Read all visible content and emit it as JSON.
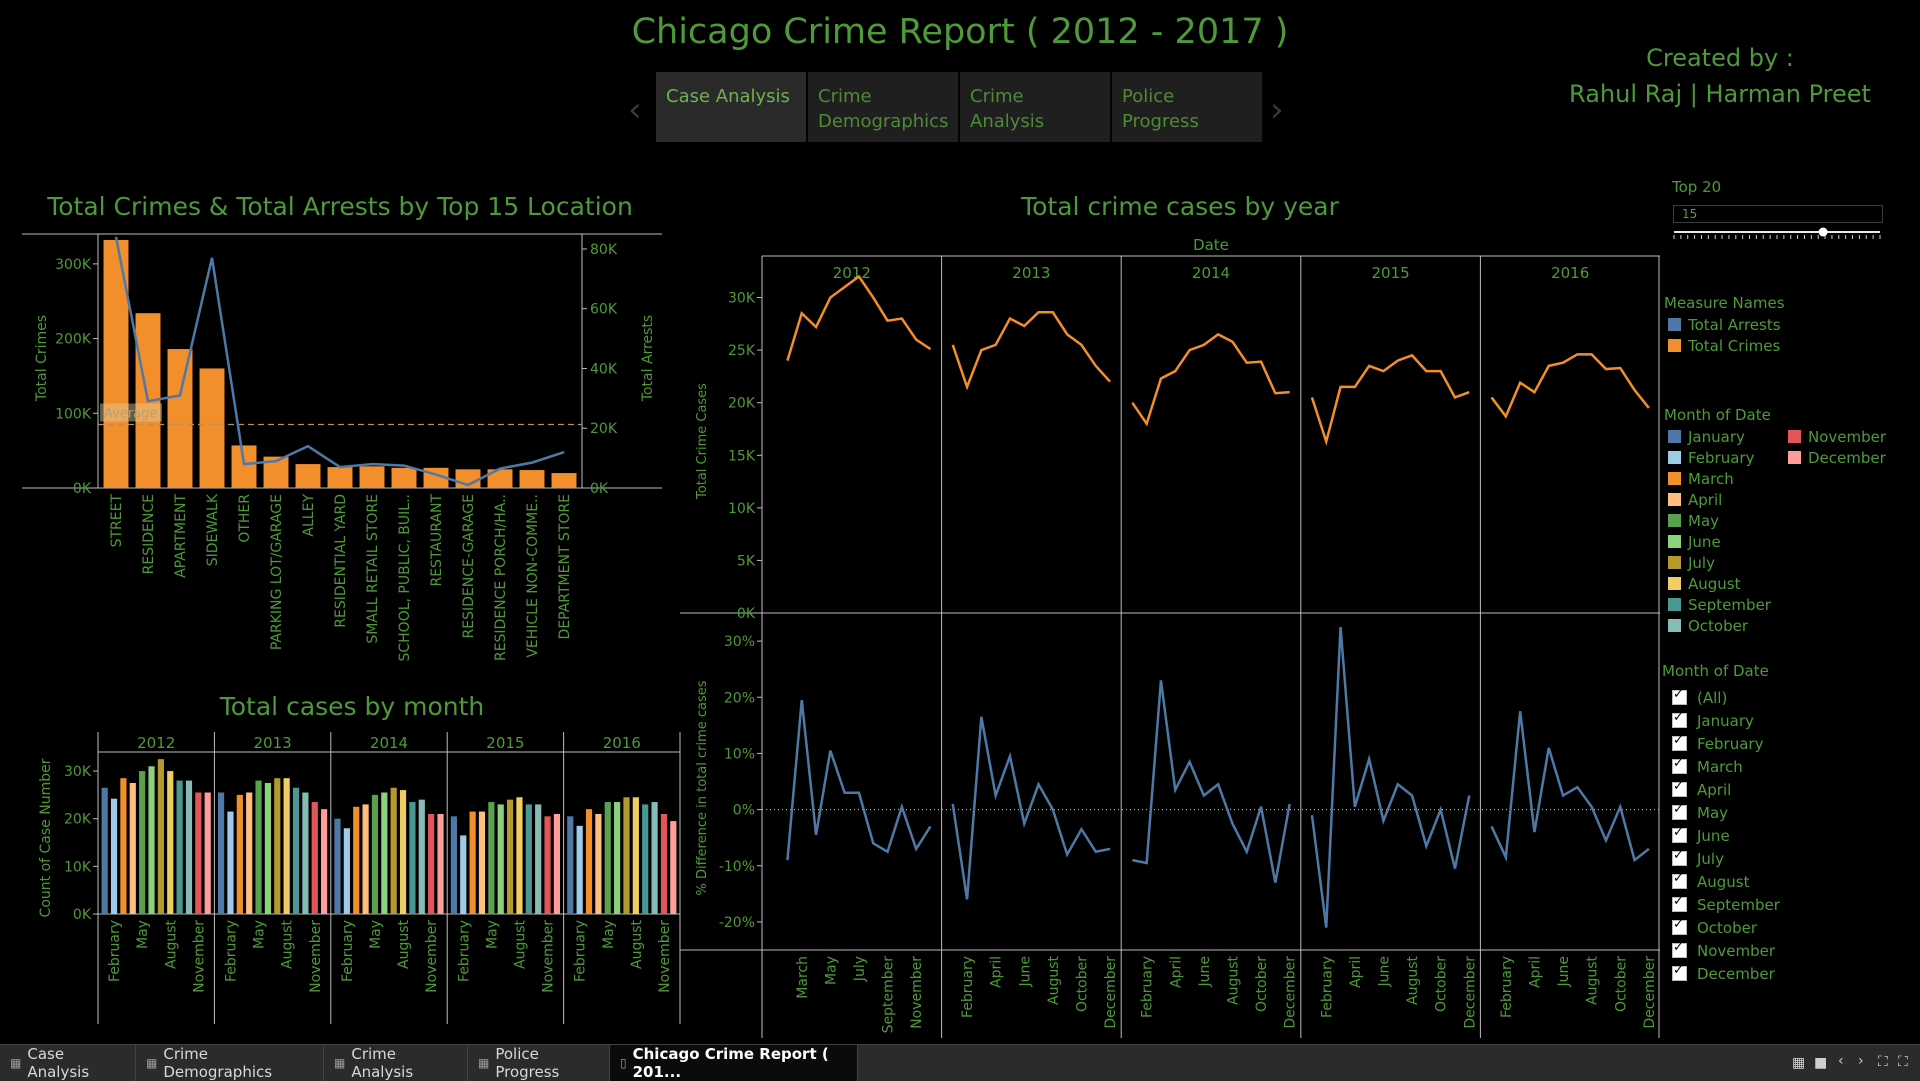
{
  "title": "Chicago Crime Report ( 2012 - 2017 )",
  "credits": {
    "line1": "Created by :",
    "line2": "Rahul Raj | Harman Preet"
  },
  "nav": {
    "prev_icon": "chevron-left-icon",
    "next_icon": "chevron-right-icon",
    "tabs": [
      {
        "label": "Case Analysis",
        "active": true
      },
      {
        "label": "Crime Demographics",
        "active": false
      },
      {
        "label": "Crime Analysis",
        "active": false
      },
      {
        "label": "Police Progress",
        "active": false
      }
    ]
  },
  "colors": {
    "orange": "#f28e2b",
    "blue": "#4e79a7",
    "text_green": "#4e9a3a",
    "background": "#000000"
  },
  "parameter": {
    "label": "Top 20",
    "value": "15",
    "slider_value": 15,
    "slider_max": 20
  },
  "legends": {
    "measure_names": {
      "title": "Measure Names",
      "items": [
        {
          "label": "Total Arrests",
          "color": "#4e79a7"
        },
        {
          "label": "Total Crimes",
          "color": "#f28e2b"
        }
      ]
    },
    "month_of_date": {
      "title": "Month of Date",
      "items": [
        {
          "label": "January",
          "color": "#4e79a7"
        },
        {
          "label": "February",
          "color": "#a0cbe8"
        },
        {
          "label": "March",
          "color": "#f28e2b"
        },
        {
          "label": "April",
          "color": "#ffbe7d"
        },
        {
          "label": "May",
          "color": "#59a14f"
        },
        {
          "label": "June",
          "color": "#8cd17d"
        },
        {
          "label": "July",
          "color": "#b6992d"
        },
        {
          "label": "August",
          "color": "#f1ce63"
        },
        {
          "label": "September",
          "color": "#499894"
        },
        {
          "label": "October",
          "color": "#86bcb6"
        },
        {
          "label": "November",
          "color": "#e15759"
        },
        {
          "label": "December",
          "color": "#ff9d9a"
        }
      ]
    },
    "filter": {
      "title": "Month of Date",
      "items": [
        "(All)",
        "January",
        "February",
        "March",
        "April",
        "May",
        "June",
        "July",
        "August",
        "September",
        "October",
        "November",
        "December"
      ]
    }
  },
  "chart_data": [
    {
      "id": "location",
      "type": "bar",
      "title": "Total Crimes & Total Arrests by Top 15 Location",
      "categories": [
        "STREET",
        "RESIDENCE",
        "APARTMENT",
        "SIDEWALK",
        "OTHER",
        "PARKING LOT/GARAGE",
        "ALLEY",
        "RESIDENTIAL YARD",
        "SMALL RETAIL STORE",
        "SCHOOL, PUBLIC, BUIL..",
        "RESTAURANT",
        "RESIDENCE-GARAGE",
        "RESIDENCE PORCH/HA..",
        "VEHICLE NON-COMME..",
        "DEPARTMENT STORE"
      ],
      "series": [
        {
          "name": "Total Crimes",
          "type": "bar",
          "axis": "left",
          "color": "#f28e2b",
          "values": [
            332000,
            234000,
            186000,
            160000,
            57000,
            42000,
            32000,
            28000,
            29000,
            27000,
            27000,
            25000,
            25000,
            24000,
            20000
          ]
        },
        {
          "name": "Total Arrests",
          "type": "line",
          "axis": "right",
          "color": "#4e79a7",
          "values": [
            84000,
            29000,
            31000,
            77000,
            8000,
            9000,
            14000,
            7000,
            8000,
            7500,
            4500,
            1000,
            6500,
            8500,
            12000
          ]
        }
      ],
      "ylabel": "Total Crimes",
      "ylabel_right": "Total Arrests",
      "ylim": [
        0,
        340000
      ],
      "ylim_right": [
        0,
        85000
      ],
      "yticks": [
        "0K",
        "100K",
        "200K",
        "300K"
      ],
      "yticks_right": [
        "0K",
        "20K",
        "40K",
        "60K",
        "80K"
      ],
      "reference_line": {
        "label": "Average",
        "value": 85000
      },
      "grid": false
    },
    {
      "id": "month",
      "type": "bar",
      "title": "Total cases by month",
      "panels": [
        "2012",
        "2013",
        "2014",
        "2015",
        "2016"
      ],
      "categories": [
        "January",
        "February",
        "March",
        "April",
        "May",
        "June",
        "July",
        "August",
        "September",
        "October",
        "November",
        "December"
      ],
      "tick_labels": [
        "February",
        "May",
        "August",
        "November"
      ],
      "series": [
        {
          "panel": "2012",
          "values": [
            26500,
            24200,
            28500,
            27500,
            30000,
            31000,
            32500,
            30000,
            28000,
            28000,
            25500,
            25500
          ]
        },
        {
          "panel": "2013",
          "values": [
            25500,
            21500,
            25000,
            25500,
            28000,
            27500,
            28500,
            28500,
            26500,
            25500,
            23500,
            22000
          ]
        },
        {
          "panel": "2014",
          "values": [
            20000,
            18000,
            22500,
            23000,
            25000,
            25500,
            26500,
            26000,
            23500,
            24000,
            21000,
            21000
          ]
        },
        {
          "panel": "2015",
          "values": [
            20500,
            16500,
            21500,
            21500,
            23500,
            23000,
            24000,
            24500,
            23000,
            23000,
            20500,
            21000
          ]
        },
        {
          "panel": "2016",
          "values": [
            20500,
            18500,
            22000,
            21000,
            23500,
            23500,
            24500,
            24500,
            23000,
            23500,
            21000,
            19500
          ]
        }
      ],
      "ylabel": "Count of Case Number",
      "ylim": [
        0,
        34000
      ],
      "yticks": [
        "0K",
        "10K",
        "20K",
        "30K"
      ]
    },
    {
      "id": "year",
      "type": "line",
      "title": "Total crime cases  by year",
      "header": "Date",
      "panels": [
        "2012",
        "2013",
        "2014",
        "2015",
        "2016"
      ],
      "categories": [
        "January",
        "February",
        "March",
        "April",
        "May",
        "June",
        "July",
        "August",
        "September",
        "October",
        "November",
        "December"
      ],
      "tick_labels": [
        "February",
        "March",
        "April",
        "May",
        "June",
        "July",
        "August",
        "September",
        "October",
        "November",
        "December"
      ],
      "series": [
        {
          "name": "Total Crimes",
          "color": "#f28e2b",
          "panel_values": [
            [
              24000,
              28500,
              27200,
              30000,
              31000,
              32000,
              30000,
              27800,
              28000,
              26000,
              25100
            ],
            [
              25500,
              21500,
              25000,
              25500,
              28000,
              27300,
              28600,
              28600,
              26500,
              25500,
              23500,
              22000
            ],
            [
              20000,
              18000,
              22300,
              23000,
              25000,
              25500,
              26500,
              25800,
              23800,
              23900,
              20900,
              21000
            ],
            [
              20500,
              16300,
              21500,
              21500,
              23500,
              23000,
              24000,
              24500,
              23000,
              23000,
              20500,
              21000
            ],
            [
              20500,
              18700,
              21900,
              21000,
              23500,
              23800,
              24600,
              24600,
              23200,
              23300,
              21200,
              19500
            ]
          ]
        },
        {
          "name": "% Difference in total crime cases",
          "color": "#4e79a7",
          "panel_values": [
            [
              -9,
              19.5,
              -4.5,
              10.5,
              3,
              3,
              -6,
              -7.5,
              0.5,
              -7,
              -3
            ],
            [
              1,
              -16,
              16.5,
              2.5,
              9.5,
              -2.5,
              4.5,
              0,
              -8,
              -3.5,
              -7.5,
              -7
            ],
            [
              -9,
              -9.5,
              23,
              3.5,
              8.5,
              2.5,
              4.5,
              -2.5,
              -7.5,
              0.5,
              -13,
              1
            ],
            [
              -1,
              -21,
              32.5,
              0.5,
              9,
              -2,
              4.5,
              2.5,
              -6.5,
              0,
              -10.5,
              2.5
            ],
            [
              -3,
              -8.5,
              17.5,
              -4,
              11,
              2.5,
              4,
              0.5,
              -5.5,
              0.5,
              -9,
              -7
            ]
          ]
        }
      ],
      "ylabel_top": "Total Crime Cases",
      "ylabel_bottom": "% Difference in total crime cases",
      "ylim_top": [
        0,
        33000
      ],
      "ylim_bottom": [
        -25,
        35
      ],
      "yticks_top": [
        "0K",
        "5K",
        "10K",
        "15K",
        "20K",
        "25K",
        "30K"
      ],
      "yticks_bottom": [
        "-20%",
        "-10%",
        "0%",
        "10%",
        "20%",
        "30%"
      ]
    }
  ],
  "sheet_tabs": [
    {
      "label": "Case Analysis",
      "active": false
    },
    {
      "label": "Crime Demographics",
      "active": false
    },
    {
      "label": "Crime Analysis",
      "active": false
    },
    {
      "label": "Police Progress",
      "active": false
    },
    {
      "label": "Chicago Crime Report ( 201...",
      "active": true
    }
  ],
  "bottom_controls": [
    "grid-icon",
    "list-icon",
    "prev-icon",
    "next-icon",
    "fit-icon",
    "fullscreen-icon"
  ]
}
